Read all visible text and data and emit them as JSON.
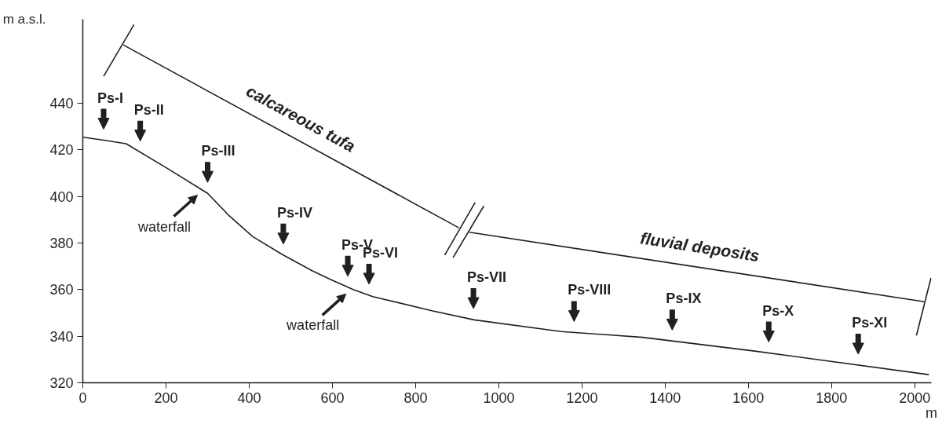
{
  "chart_data": {
    "type": "line",
    "xlabel": "m",
    "ylabel": "m a.s.l.",
    "xlim": [
      0,
      2040
    ],
    "ylim": [
      320,
      476
    ],
    "xticks": [
      0,
      200,
      400,
      600,
      800,
      1000,
      1200,
      1400,
      1600,
      1800,
      2000
    ],
    "yticks": [
      320,
      340,
      360,
      380,
      400,
      420,
      440
    ],
    "series": [
      {
        "color": "#231f20",
        "x": [
          0,
          47,
          104,
          206,
          300,
          350,
          408,
          480,
          552,
          600,
          650,
          697,
          841,
          941,
          1150,
          1346,
          1615,
          2034
        ],
        "values": [
          425.4,
          424.2,
          422.6,
          411.7,
          401.3,
          392,
          382.8,
          375,
          368,
          364,
          360,
          357,
          350.8,
          347,
          342,
          339.5,
          333.6,
          323.5
        ]
      },
      {
        "name": "calcareous tufa",
        "color": "#231f20",
        "x": [
          97,
          904
        ],
        "values": [
          465,
          386.5
        ]
      },
      {
        "name": "fluvial deposits",
        "color": "#231f20",
        "x": [
          929,
          2023
        ],
        "values": [
          384.6,
          354.8
        ]
      },
      {
        "color": "#231f20",
        "x": [
          50,
          123
        ],
        "values": [
          451.5,
          473.7
        ]
      },
      {
        "color": "#231f20",
        "x": [
          870,
          943
        ],
        "values": [
          374.8,
          397.4
        ]
      },
      {
        "color": "#231f20",
        "x": [
          890,
          964
        ],
        "values": [
          373.7,
          395.9
        ]
      },
      {
        "color": "#231f20",
        "x": [
          2004,
          2039
        ],
        "values": [
          340.3,
          365
        ]
      }
    ],
    "annotations": [
      {
        "text": "Ps-I",
        "x": 50,
        "y": 424.1
      },
      {
        "text": "Ps-II",
        "x": 138,
        "y": 419
      },
      {
        "text": "Ps-III",
        "x": 300,
        "y": 401.3
      },
      {
        "text": "Ps-IV",
        "x": 482,
        "y": 374.8
      },
      {
        "text": "Ps-V",
        "x": 637,
        "y": 361
      },
      {
        "text": "Ps-VI",
        "x": 688,
        "y": 357.6
      },
      {
        "text": "Ps-VII",
        "x": 939,
        "y": 347.1
      },
      {
        "text": "Ps-VIII",
        "x": 1181,
        "y": 341.6
      },
      {
        "text": "Ps-IX",
        "x": 1417,
        "y": 337.9
      },
      {
        "text": "Ps-X",
        "x": 1649,
        "y": 332.8
      },
      {
        "text": "Ps-XI",
        "x": 1864,
        "y": 327.6
      },
      {
        "text": "waterfall",
        "x": 283,
        "y": 403.2
      },
      {
        "text": "waterfall",
        "x": 640,
        "y": 360.8
      }
    ]
  }
}
